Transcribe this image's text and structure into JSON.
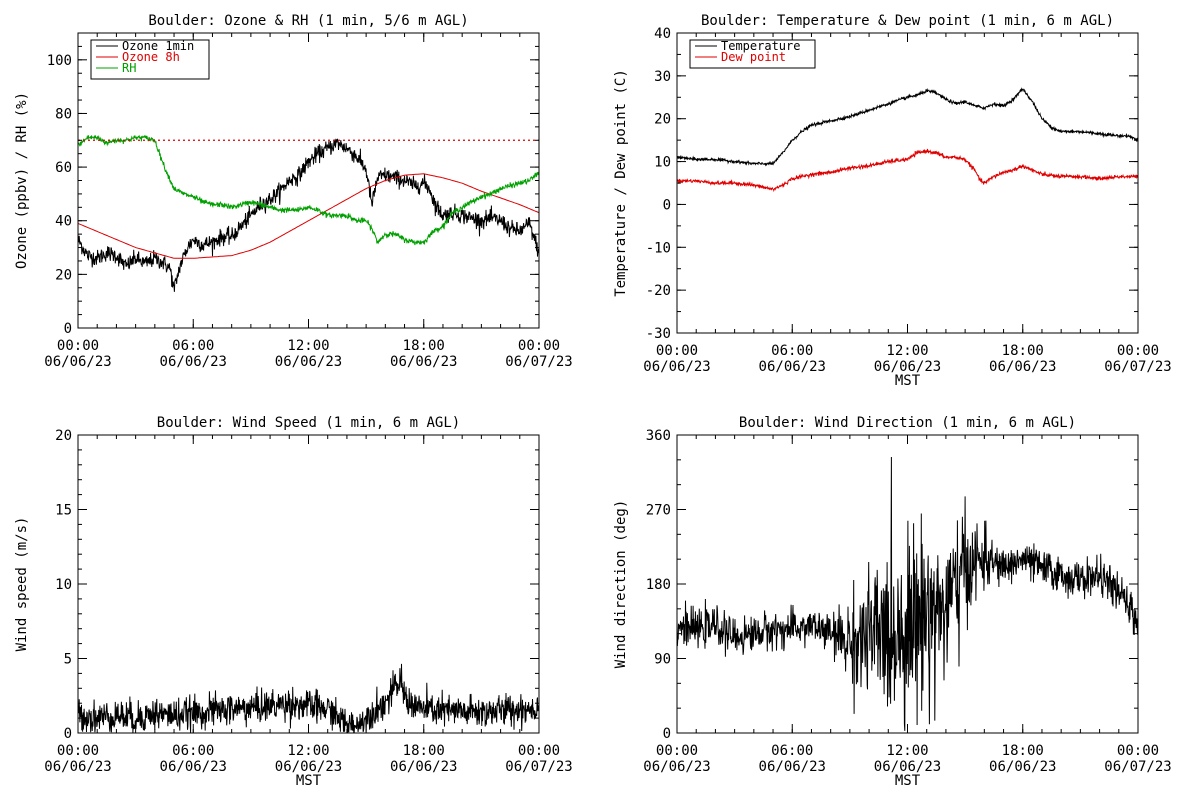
{
  "chart_data": [
    {
      "id": "ozone_rh",
      "type": "line",
      "title": "Boulder: Ozone & RH (1 min, 5/6 m AGL)",
      "xlabel": "",
      "ylabel": "Ozone (ppbv) / RH (%)",
      "xlim": [
        0,
        24
      ],
      "ylim": [
        0,
        110
      ],
      "xticks": [
        0,
        6,
        12,
        18,
        24
      ],
      "xtick_labels": [
        [
          "00:00",
          "06/06/23"
        ],
        [
          "06:00",
          "06/06/23"
        ],
        [
          "12:00",
          "06/06/23"
        ],
        [
          "18:00",
          "06/06/23"
        ],
        [
          "00:00",
          "06/07/23"
        ]
      ],
      "yticks": [
        0,
        20,
        40,
        60,
        80,
        100
      ],
      "ytick_labels": [
        "0",
        "20",
        "40",
        "60",
        "80",
        "100"
      ],
      "minor_y": 5,
      "minor_x": 1,
      "legend": "top-left",
      "reference_line": {
        "y": 70,
        "color": "#e00000",
        "style": "dotted"
      },
      "series": [
        {
          "name": "Ozone 1min",
          "color": "#000000",
          "noise": 2.5,
          "x": [
            0,
            0.5,
            1,
            1.5,
            2,
            2.5,
            3,
            3.5,
            4,
            4.5,
            4.8,
            5,
            5.3,
            5.7,
            6,
            6.5,
            7,
            7.5,
            8,
            8.5,
            9,
            9.5,
            10,
            10.5,
            11,
            11.5,
            12,
            12.5,
            13,
            13.5,
            14,
            14.5,
            15,
            15.3,
            15.6,
            16,
            16.5,
            17,
            17.5,
            18,
            18.3,
            18.6,
            19,
            19.5,
            20,
            20.5,
            21,
            21.5,
            22,
            22.5,
            23,
            23.5,
            24
          ],
          "y": [
            33,
            27,
            26,
            28,
            27,
            23,
            26,
            24,
            26,
            24,
            22,
            14,
            23,
            30,
            33,
            31,
            32,
            34,
            34,
            38,
            42,
            46,
            48,
            51,
            55,
            57,
            62,
            65,
            67,
            69,
            67,
            64,
            59,
            46,
            56,
            57,
            56,
            55,
            53,
            54,
            52,
            46,
            42,
            43,
            42,
            41,
            40,
            41,
            40,
            37,
            36,
            39,
            28
          ]
        },
        {
          "name": "Ozone 8h",
          "color": "#e00000",
          "noise": 0,
          "x": [
            0,
            1,
            2,
            3,
            4,
            5,
            6,
            7,
            8,
            9,
            10,
            11,
            12,
            13,
            14,
            15,
            16,
            17,
            18,
            19,
            20,
            21,
            22,
            23,
            24
          ],
          "y": [
            39,
            36,
            33,
            30,
            28,
            26,
            26,
            26.5,
            27,
            29,
            32,
            36,
            40,
            44,
            48,
            52,
            55,
            57,
            57.5,
            56,
            54,
            51,
            48.5,
            46,
            43
          ]
        },
        {
          "name": "RH",
          "color": "#00a000",
          "noise": 0.8,
          "x": [
            0,
            0.5,
            1,
            1.5,
            2,
            2.5,
            3,
            3.5,
            4,
            4.5,
            5,
            5.5,
            6,
            6.5,
            7,
            7.5,
            8,
            8.5,
            9,
            9.5,
            10,
            10.5,
            11,
            11.5,
            12,
            12.5,
            13,
            13.5,
            14,
            14.5,
            15,
            15.3,
            15.6,
            16,
            16.5,
            17,
            17.5,
            18,
            18.5,
            19,
            19.5,
            20,
            20.5,
            21,
            21.5,
            22,
            22.5,
            23,
            23.5,
            24
          ],
          "y": [
            68,
            71,
            71,
            69,
            70,
            70,
            71,
            71,
            70,
            60,
            52,
            50,
            49,
            47,
            46,
            46,
            45,
            46,
            47,
            46,
            45,
            44,
            44,
            44,
            45,
            44,
            42,
            42,
            42,
            40,
            40,
            37,
            32,
            35,
            35,
            33,
            32,
            32,
            36,
            38,
            43,
            45,
            47,
            49,
            50,
            52,
            53,
            54,
            55,
            58
          ]
        }
      ]
    },
    {
      "id": "temp_dew",
      "type": "line",
      "title": "Boulder: Temperature & Dew point (1 min, 6 m AGL)",
      "xlabel": "MST",
      "ylabel": "Temperature / Dew point (C)",
      "xlim": [
        0,
        24
      ],
      "ylim": [
        -30,
        40
      ],
      "xticks": [
        0,
        6,
        12,
        18,
        24
      ],
      "xtick_labels": [
        [
          "00:00",
          "06/06/23"
        ],
        [
          "06:00",
          "06/06/23"
        ],
        [
          "12:00",
          "06/06/23"
        ],
        [
          "18:00",
          "06/06/23"
        ],
        [
          "00:00",
          "06/07/23"
        ]
      ],
      "yticks": [
        -30,
        -20,
        -10,
        0,
        10,
        20,
        30,
        40
      ],
      "ytick_labels": [
        "-30",
        "-20",
        "-10",
        "0",
        "10",
        "20",
        "30",
        "40"
      ],
      "minor_y": 5,
      "minor_x": 1,
      "legend": "top-left",
      "series": [
        {
          "name": "Temperature",
          "color": "#000000",
          "noise": 0.3,
          "x": [
            0,
            1,
            2,
            3,
            4,
            5,
            5.5,
            6,
            6.5,
            7,
            8,
            9,
            10,
            11,
            12,
            12.5,
            13,
            13.5,
            14,
            14.5,
            15,
            15.5,
            16,
            16.5,
            17,
            17.5,
            18,
            18.5,
            19,
            19.5,
            20,
            21,
            22,
            23,
            23.5,
            24
          ],
          "y": [
            11,
            10.5,
            10.5,
            10,
            9.5,
            9.5,
            12,
            15,
            17,
            18.5,
            19.5,
            20.5,
            22,
            23.5,
            25,
            25.5,
            26.5,
            26,
            24.5,
            23.5,
            24,
            23,
            22.5,
            23.5,
            23,
            24.5,
            27,
            24,
            20,
            18,
            17,
            17,
            16.5,
            16,
            16,
            15
          ]
        },
        {
          "name": "Dew point",
          "color": "#e00000",
          "noise": 0.35,
          "x": [
            0,
            1,
            2,
            3,
            4,
            5,
            5.5,
            6,
            7,
            8,
            9,
            10,
            11,
            12,
            12.5,
            13,
            13.5,
            14,
            14.5,
            15,
            15.5,
            15.8,
            16,
            16.5,
            17,
            17.5,
            18,
            18.5,
            19,
            20,
            21,
            22,
            23,
            24
          ],
          "y": [
            5.5,
            5.5,
            5,
            5,
            4.5,
            3.5,
            4.5,
            6,
            7,
            7.5,
            8.5,
            9,
            10,
            10.5,
            12,
            12.5,
            12,
            11,
            11,
            10.5,
            8,
            5.5,
            5,
            6.5,
            7.5,
            8,
            9,
            8,
            7,
            6.5,
            6.5,
            6,
            6.5,
            6.5
          ]
        }
      ]
    },
    {
      "id": "wind_speed",
      "type": "line",
      "title": "Boulder: Wind Speed (1 min, 6 m AGL)",
      "xlabel": "MST",
      "ylabel": "Wind speed (m/s)",
      "xlim": [
        0,
        24
      ],
      "ylim": [
        0,
        20
      ],
      "xticks": [
        0,
        6,
        12,
        18,
        24
      ],
      "xtick_labels": [
        [
          "00:00",
          "06/06/23"
        ],
        [
          "06:00",
          "06/06/23"
        ],
        [
          "12:00",
          "06/06/23"
        ],
        [
          "18:00",
          "06/06/23"
        ],
        [
          "00:00",
          "06/07/23"
        ]
      ],
      "yticks": [
        0,
        5,
        10,
        15,
        20
      ],
      "ytick_labels": [
        "0",
        "5",
        "10",
        "15",
        "20"
      ],
      "minor_y": 1,
      "minor_x": 1,
      "legend": "none",
      "series": [
        {
          "name": "",
          "color": "#000000",
          "noise": 0.9,
          "x": [
            0,
            1,
            2,
            3,
            4,
            5,
            6,
            7,
            8,
            9,
            10,
            11,
            12,
            13,
            14,
            14.5,
            15,
            15.5,
            16,
            16.5,
            16.8,
            17,
            17.5,
            18,
            19,
            20,
            21,
            22,
            23,
            24
          ],
          "y": [
            1.2,
            1,
            1.2,
            1,
            1.3,
            1.2,
            1.3,
            1.5,
            1.6,
            1.7,
            1.8,
            2,
            1.8,
            1.6,
            0.5,
            0.4,
            1,
            1.6,
            2,
            3,
            3.5,
            2.5,
            1.8,
            1.6,
            1.5,
            1.4,
            1.4,
            1.5,
            1.6,
            1.7
          ]
        }
      ]
    },
    {
      "id": "wind_dir",
      "type": "line",
      "title": "Boulder: Wind Direction (1 min, 6 m AGL)",
      "xlabel": "MST",
      "ylabel": "Wind direction (deg)",
      "xlim": [
        0,
        24
      ],
      "ylim": [
        0,
        360
      ],
      "xticks": [
        0,
        6,
        12,
        18,
        24
      ],
      "xtick_labels": [
        [
          "00:00",
          "06/06/23"
        ],
        [
          "06:00",
          "06/06/23"
        ],
        [
          "12:00",
          "06/06/23"
        ],
        [
          "18:00",
          "06/06/23"
        ],
        [
          "00:00",
          "06/07/23"
        ]
      ],
      "yticks": [
        0,
        90,
        180,
        270,
        360
      ],
      "ytick_labels": [
        "0",
        "90",
        "180",
        "270",
        "360"
      ],
      "minor_y": 30,
      "minor_x": 1,
      "legend": "none",
      "series": [
        {
          "name": "",
          "color": "#000000",
          "noise": 18,
          "spike_noise": 70,
          "spike_range": [
            8,
            16.5
          ],
          "x": [
            0,
            1,
            2,
            3,
            4,
            5,
            6,
            7,
            8,
            9,
            10,
            11,
            12,
            13,
            14,
            15,
            16,
            17,
            18,
            19,
            20,
            21,
            22,
            23,
            24
          ],
          "y": [
            130,
            125,
            130,
            115,
            120,
            125,
            125,
            130,
            120,
            110,
            115,
            120,
            130,
            150,
            150,
            200,
            210,
            200,
            210,
            200,
            190,
            185,
            190,
            170,
            135
          ]
        }
      ]
    }
  ]
}
